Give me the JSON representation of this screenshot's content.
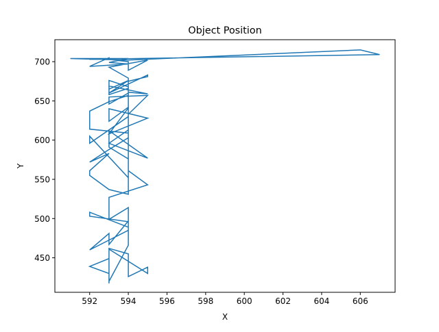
{
  "chart_data": {
    "type": "line",
    "title": "Object Position",
    "xlabel": "X",
    "ylabel": "Y",
    "xlim": [
      590.2,
      607.8
    ],
    "ylim": [
      406,
      728
    ],
    "xticks": [
      592,
      594,
      596,
      598,
      600,
      602,
      604,
      606
    ],
    "yticks": [
      450,
      500,
      550,
      600,
      650,
      700
    ],
    "grid": false,
    "line_color": "#1f77b4",
    "series": [
      {
        "x": [
          593,
          593,
          592,
          593,
          593,
          595,
          595,
          594,
          594,
          593,
          593,
          594,
          594,
          593,
          593,
          592,
          594,
          594,
          592,
          592,
          594,
          594,
          593,
          593,
          595,
          594,
          594,
          593,
          592,
          592,
          593,
          592,
          593,
          594,
          594,
          593,
          593,
          595,
          593,
          594,
          594,
          592,
          592,
          594,
          594,
          593,
          593,
          595,
          593,
          594,
          594,
          592,
          592,
          593,
          594,
          594,
          593,
          593,
          595,
          594,
          594,
          593,
          593,
          595,
          594,
          594,
          595,
          595,
          593,
          594,
          593,
          593,
          594,
          594,
          593,
          595,
          594,
          594,
          593,
          593,
          592,
          594,
          593,
          594,
          591,
          594,
          606,
          607,
          592
        ],
        "y": [
          418,
          430,
          439,
          449,
          461,
          430,
          438,
          426,
          455,
          462,
          420,
          466,
          497,
          467,
          481,
          460,
          485,
          496,
          503,
          508,
          489,
          514,
          499,
          527,
          543,
          561,
          531,
          537,
          555,
          561,
          583,
          572,
          588,
          603,
          576,
          591,
          612,
          577,
          596,
          613,
          552,
          605,
          596,
          630,
          642,
          624,
          640,
          628,
          608,
          641,
          609,
          614,
          637,
          649,
          657,
          660,
          646,
          655,
          657,
          633,
          666,
          658,
          669,
          659,
          661,
          675,
          681,
          683,
          660,
          676,
          665,
          676,
          668,
          679,
          693,
          702,
          689,
          700,
          703,
          705,
          694,
          697,
          699,
          704,
          704,
          702,
          715,
          709,
          703
        ]
      }
    ]
  }
}
